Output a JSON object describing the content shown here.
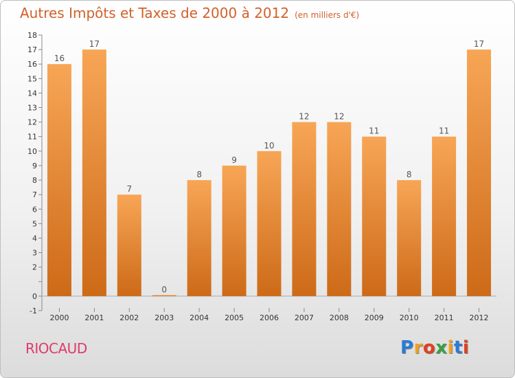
{
  "title": "Autres Impôts et Taxes de 2000 à 2012",
  "unit_note": "(en milliers d'€)",
  "location": "RIOCAUD",
  "logo": {
    "letters": [
      "P",
      "r",
      "o",
      "x",
      "i",
      "t",
      "i"
    ],
    "colors": [
      "#2b7bd6",
      "#f0a020",
      "#e04020",
      "#3aa040",
      "#f0a020",
      "#2b7bd6",
      "#e04020"
    ]
  },
  "colors": {
    "bar_top": "#f7a656",
    "bar_bottom": "#cd6a18",
    "title": "#d2602a",
    "location": "#dd3b6b"
  },
  "chart_data": {
    "type": "bar",
    "categories": [
      "2000",
      "2001",
      "2002",
      "2003",
      "2004",
      "2005",
      "2006",
      "2007",
      "2008",
      "2009",
      "2010",
      "2011",
      "2012"
    ],
    "values": [
      16,
      17,
      7,
      0,
      8,
      9,
      10,
      12,
      12,
      11,
      8,
      11,
      17
    ],
    "data_labels": [
      "16",
      "17",
      "7",
      "0",
      "8",
      "9",
      "10",
      "12",
      "12",
      "11",
      "8",
      "11",
      "17"
    ],
    "title": "Autres Impôts et Taxes de 2000 à 2012",
    "xlabel": "",
    "ylabel": "",
    "ylim": [
      -1,
      18
    ],
    "yticks": [
      -1,
      0,
      1,
      2,
      3,
      4,
      5,
      6,
      7,
      8,
      9,
      10,
      11,
      12,
      13,
      14,
      15,
      16,
      17,
      18
    ],
    "ytick_labels": [
      "-1",
      "0",
      "",
      "2",
      "3",
      "4",
      "5",
      "6",
      "7",
      "8",
      "9",
      "10",
      "11",
      "12",
      "13",
      "14",
      "15",
      "16",
      "17",
      "18"
    ],
    "grid": false,
    "legend": "none"
  }
}
